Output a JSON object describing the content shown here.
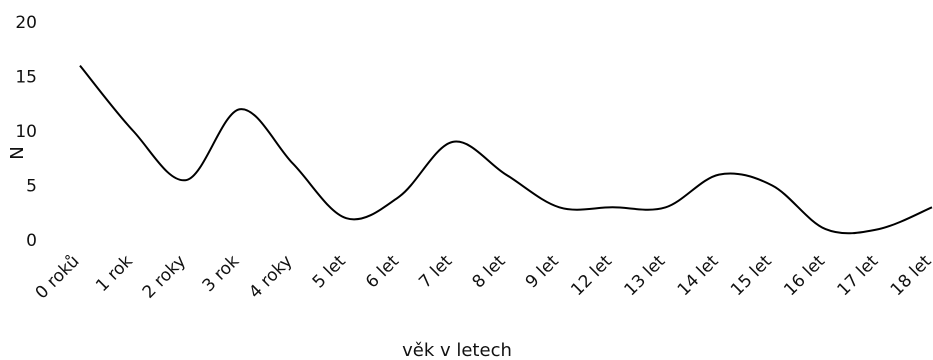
{
  "chart_data": {
    "type": "line",
    "categories": [
      "0 roků",
      "1 rok",
      "2 roky",
      "3 rok",
      "4 roky",
      "5 let",
      "6 let",
      "7 let",
      "8 let",
      "9 let",
      "12 let",
      "13 let",
      "14 let",
      "15 let",
      "16 let",
      "17 let",
      "18 let"
    ],
    "series": [
      {
        "values": [
          16,
          10,
          5.5,
          12,
          7,
          2,
          4,
          9,
          6,
          3,
          3,
          3,
          6,
          5,
          1,
          1,
          3
        ],
        "color": "#000000"
      }
    ],
    "title": "",
    "xlabel": "věk v letech",
    "ylabel": "N",
    "ylim": [
      0,
      20
    ],
    "yticks": [
      "0",
      "5",
      "10",
      "15",
      "20"
    ],
    "grid": false,
    "legend": "none"
  }
}
